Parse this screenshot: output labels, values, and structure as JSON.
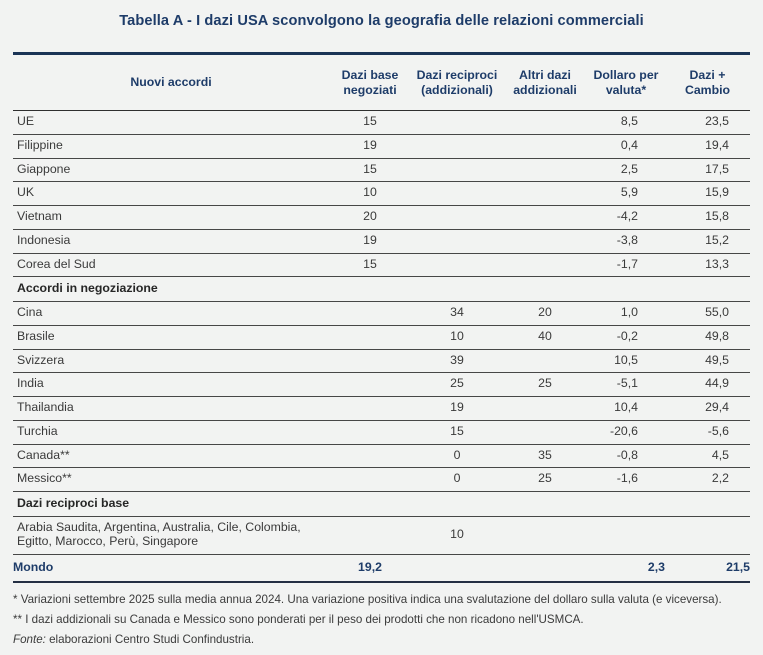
{
  "title": "Tabella A - I dazi USA sconvolgono la geografia delle relazioni commerciali",
  "chart_data": {
    "type": "table",
    "title": "Tabella A - I dazi USA sconvolgono la geografia delle relazioni commerciali",
    "columns": [
      "Nuovi accordi",
      "Dazi base negoziati",
      "Dazi reciproci (addizionali)",
      "Altri dazi addizionali",
      "Dollaro per valuta*",
      "Dazi + Cambio"
    ],
    "rows": [
      {
        "type": "data",
        "label": "UE",
        "values": [
          "15",
          "",
          "",
          "8,5",
          "23,5"
        ]
      },
      {
        "type": "data",
        "label": "Filippine",
        "values": [
          "19",
          "",
          "",
          "0,4",
          "19,4"
        ]
      },
      {
        "type": "data",
        "label": "Giappone",
        "values": [
          "15",
          "",
          "",
          "2,5",
          "17,5"
        ]
      },
      {
        "type": "data",
        "label": "UK",
        "values": [
          "10",
          "",
          "",
          "5,9",
          "15,9"
        ]
      },
      {
        "type": "data",
        "label": "Vietnam",
        "values": [
          "20",
          "",
          "",
          "-4,2",
          "15,8"
        ]
      },
      {
        "type": "data",
        "label": "Indonesia",
        "values": [
          "19",
          "",
          "",
          "-3,8",
          "15,2"
        ]
      },
      {
        "type": "data",
        "label": "Corea del Sud",
        "values": [
          "15",
          "",
          "",
          "-1,7",
          "13,3"
        ]
      },
      {
        "type": "section",
        "label": "Accordi in negoziazione"
      },
      {
        "type": "data",
        "label": "Cina",
        "values": [
          "",
          "34",
          "20",
          "1,0",
          "55,0"
        ]
      },
      {
        "type": "data",
        "label": "Brasile",
        "values": [
          "",
          "10",
          "40",
          "-0,2",
          "49,8"
        ]
      },
      {
        "type": "data",
        "label": "Svizzera",
        "values": [
          "",
          "39",
          "",
          "10,5",
          "49,5"
        ]
      },
      {
        "type": "data",
        "label": "India",
        "values": [
          "",
          "25",
          "25",
          "-5,1",
          "44,9"
        ]
      },
      {
        "type": "data",
        "label": "Thailandia",
        "values": [
          "",
          "19",
          "",
          "10,4",
          "29,4"
        ]
      },
      {
        "type": "data",
        "label": "Turchia",
        "values": [
          "",
          "15",
          "",
          "-20,6",
          "-5,6"
        ]
      },
      {
        "type": "data",
        "label": "Canada**",
        "values": [
          "",
          "0",
          "35",
          "-0,8",
          "4,5"
        ]
      },
      {
        "type": "data",
        "label": "Messico**",
        "values": [
          "",
          "0",
          "25",
          "-1,6",
          "2,2"
        ]
      },
      {
        "type": "section",
        "label": "Dazi reciproci base"
      },
      {
        "type": "data",
        "label": "Arabia Saudita, Argentina, Australia, Cile, Colombia, Egitto, Marocco, Perù, Singapore",
        "values": [
          "",
          "10",
          "",
          "",
          ""
        ]
      },
      {
        "type": "total",
        "label": "Mondo",
        "values": [
          "19,2",
          "",
          "",
          "2,3",
          "21,5"
        ]
      }
    ]
  },
  "footnotes": [
    "* Variazioni settembre 2025 sulla media annua 2024. Una variazione positiva indica una svalutazione del dollaro sulla valuta (e viceversa).",
    "** I dazi addizionali su Canada e Messico sono ponderati per il peso dei prodotti che non ricadono nell'USMCA."
  ],
  "source": {
    "label": "Fonte:",
    "text": "elaborazioni Centro Studi Confindustria."
  },
  "colors": {
    "accent_navy": "#1e3c69",
    "top_rule_navy": "#1b3456",
    "background": "#f2f3f2",
    "body_text": "#3a3a3a",
    "row_line": "#474747"
  }
}
